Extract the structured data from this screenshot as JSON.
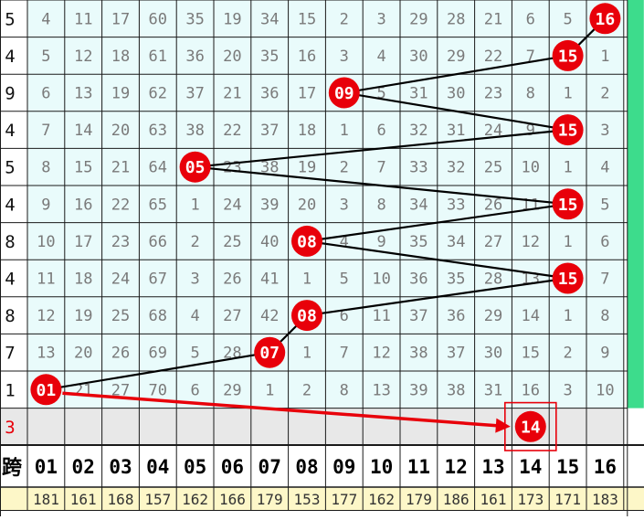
{
  "chart_data": {
    "type": "table",
    "left_column": [
      "5",
      "4",
      "9",
      "4",
      "5",
      "4",
      "8",
      "4",
      "8",
      "7",
      "1",
      "3"
    ],
    "grid": [
      [
        "4",
        "11",
        "17",
        "60",
        "35",
        "19",
        "34",
        "15",
        "2",
        "3",
        "29",
        "28",
        "21",
        "6",
        "5",
        "16"
      ],
      [
        "5",
        "12",
        "18",
        "61",
        "36",
        "20",
        "35",
        "16",
        "3",
        "4",
        "30",
        "29",
        "22",
        "7",
        "15",
        "1"
      ],
      [
        "6",
        "13",
        "19",
        "62",
        "37",
        "21",
        "36",
        "17",
        "09",
        "5",
        "31",
        "30",
        "23",
        "8",
        "1",
        "2"
      ],
      [
        "7",
        "14",
        "20",
        "63",
        "38",
        "22",
        "37",
        "18",
        "1",
        "6",
        "32",
        "31",
        "24",
        "9",
        "15",
        "3"
      ],
      [
        "8",
        "15",
        "21",
        "64",
        "05",
        "23",
        "38",
        "19",
        "2",
        "7",
        "33",
        "32",
        "25",
        "10",
        "1",
        "4"
      ],
      [
        "9",
        "16",
        "22",
        "65",
        "1",
        "24",
        "39",
        "20",
        "3",
        "8",
        "34",
        "33",
        "26",
        "11",
        "15",
        "5"
      ],
      [
        "10",
        "17",
        "23",
        "66",
        "2",
        "25",
        "40",
        "08",
        "4",
        "9",
        "35",
        "34",
        "27",
        "12",
        "1",
        "6"
      ],
      [
        "11",
        "18",
        "24",
        "67",
        "3",
        "26",
        "41",
        "1",
        "5",
        "10",
        "36",
        "35",
        "28",
        "13",
        "15",
        "7"
      ],
      [
        "12",
        "19",
        "25",
        "68",
        "4",
        "27",
        "42",
        "08",
        "6",
        "11",
        "37",
        "36",
        "29",
        "14",
        "1",
        "8"
      ],
      [
        "13",
        "20",
        "26",
        "69",
        "5",
        "28",
        "07",
        "1",
        "7",
        "12",
        "38",
        "37",
        "30",
        "15",
        "2",
        "9"
      ],
      [
        "01",
        "21",
        "27",
        "70",
        "6",
        "29",
        "1",
        "2",
        "8",
        "13",
        "39",
        "38",
        "31",
        "16",
        "3",
        "10"
      ]
    ],
    "hits": [
      {
        "row": 0,
        "col": 15,
        "label": "16"
      },
      {
        "row": 1,
        "col": 14,
        "label": "15"
      },
      {
        "row": 2,
        "col": 8,
        "label": "09"
      },
      {
        "row": 3,
        "col": 14,
        "label": "15"
      },
      {
        "row": 4,
        "col": 4,
        "label": "05"
      },
      {
        "row": 5,
        "col": 14,
        "label": "15"
      },
      {
        "row": 6,
        "col": 7,
        "label": "08"
      },
      {
        "row": 7,
        "col": 14,
        "label": "15"
      },
      {
        "row": 8,
        "col": 7,
        "label": "08"
      },
      {
        "row": 9,
        "col": 6,
        "label": "07"
      },
      {
        "row": 10,
        "col": 0,
        "label": "01"
      }
    ],
    "prediction": {
      "col": 13,
      "label": "14"
    },
    "header_label": "跨",
    "columns": [
      "01",
      "02",
      "03",
      "04",
      "05",
      "06",
      "07",
      "08",
      "09",
      "10",
      "11",
      "12",
      "13",
      "14",
      "15",
      "16"
    ],
    "totals": [
      "181",
      "161",
      "168",
      "157",
      "162",
      "166",
      "179",
      "153",
      "177",
      "162",
      "179",
      "186",
      "161",
      "173",
      "171",
      "183"
    ],
    "colors": {
      "grid_bg": "#e9fbfb",
      "grid_line": "#1a1a1a",
      "cell_text": "#7a7a7a",
      "hit_fill": "#e8000a",
      "hit_text": "#ffffff",
      "link_line": "#000000",
      "pred_arrow": "#e8000a",
      "pred_row_bg": "#e8e8e8",
      "totals_bg": "#fdf7c8",
      "right_strip": "#3ddc8c",
      "left_red_text": "#e8000a"
    }
  }
}
